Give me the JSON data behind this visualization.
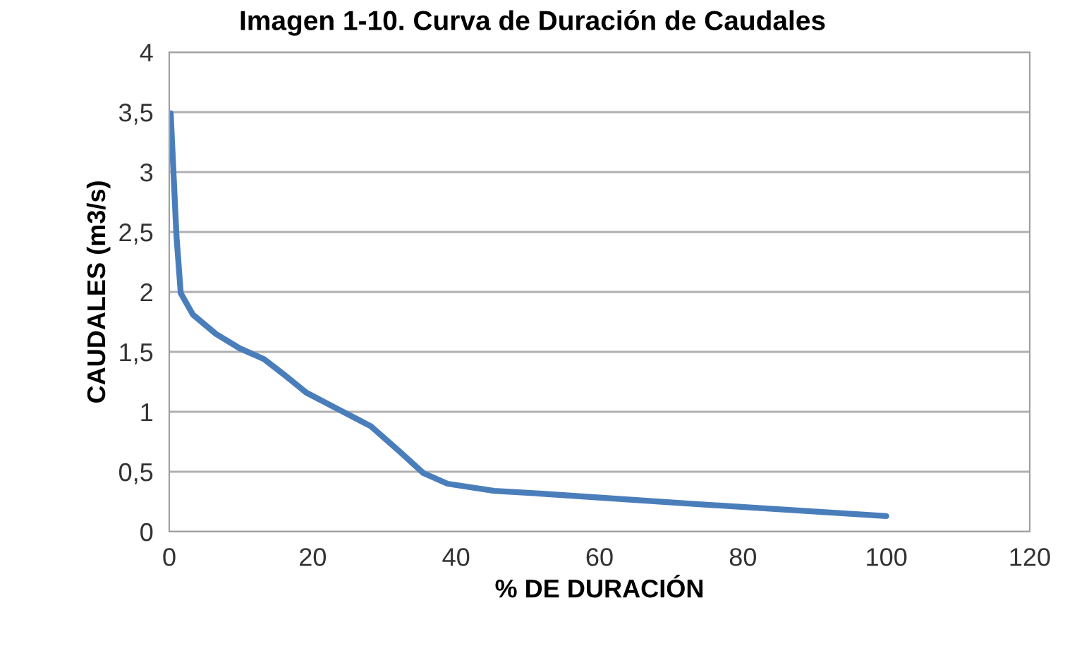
{
  "chart_data": {
    "type": "line",
    "title": "Imagen 1-10. Curva de Duración de Caudales",
    "xlabel": "% DE DURACIÓN",
    "ylabel": "CAUDALES (m3/s)",
    "series": [
      {
        "color": "#4a7ebb",
        "x": [
          0.2,
          1.0,
          1.6,
          3.3,
          6.5,
          9.8,
          13.2,
          15.8,
          19.1,
          23.6,
          28.1,
          32.1,
          35.4,
          38.8,
          45.3,
          51.2,
          70.9,
          100
        ],
        "values": [
          3.49,
          2.47,
          1.99,
          1.81,
          1.65,
          1.53,
          1.44,
          1.32,
          1.16,
          1.02,
          0.88,
          0.67,
          0.49,
          0.4,
          0.34,
          0.32,
          0.24,
          0.13
        ]
      }
    ],
    "xlim": [
      0,
      120
    ],
    "xticks": [
      0,
      20,
      40,
      60,
      80,
      100,
      120
    ],
    "ylim": [
      0,
      4
    ],
    "yticks": [
      0,
      {
        "value": 0.5,
        "label": "0,5"
      },
      1,
      {
        "value": 1.5,
        "label": "1,5"
      },
      2,
      {
        "value": 2.5,
        "label": "2,5"
      },
      3,
      {
        "value": 3.5,
        "label": "3,5"
      },
      4
    ],
    "grid": "y",
    "marker": "none",
    "line_style": "solid"
  }
}
